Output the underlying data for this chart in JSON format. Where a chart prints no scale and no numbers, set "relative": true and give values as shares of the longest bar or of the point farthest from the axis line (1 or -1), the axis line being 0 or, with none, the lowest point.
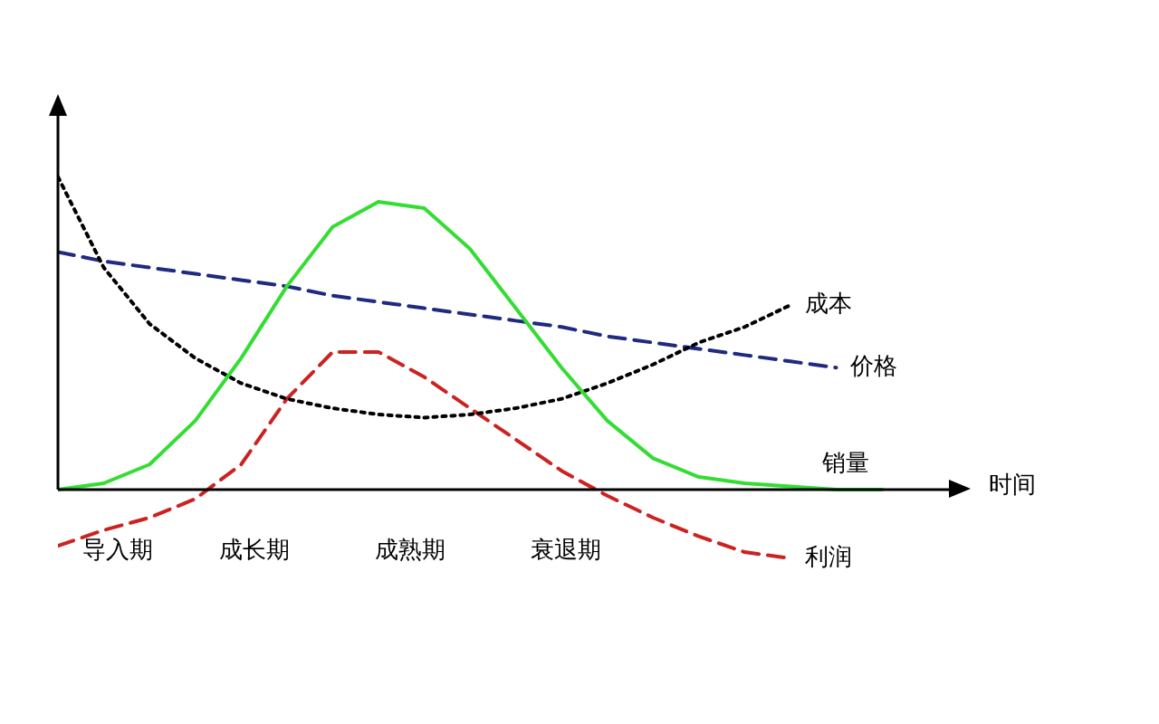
{
  "chart_data": {
    "type": "line",
    "xlabel": "时间",
    "relative": true,
    "legend": false,
    "marker": "none",
    "categories": [
      null,
      null,
      null,
      null,
      null,
      null,
      null,
      null,
      null,
      null,
      null,
      null,
      null,
      null,
      null,
      null,
      null,
      null,
      null
    ],
    "series": [
      {
        "name": "销量",
        "color": "#33dd33",
        "line_style": "solid",
        "values": [
          0,
          0.02,
          0.08,
          0.22,
          0.42,
          0.65,
          0.84,
          0.92,
          0.9,
          0.77,
          0.58,
          0.39,
          0.22,
          0.1,
          0.04,
          0.02,
          0.01,
          0,
          0
        ]
      },
      {
        "name": "成本",
        "color": "#000000",
        "line_style": "dotted",
        "values": [
          1,
          0.71,
          0.53,
          0.42,
          0.34,
          0.29,
          0.26,
          0.24,
          0.23,
          0.24,
          0.26,
          0.29,
          0.34,
          0.4,
          0.47,
          0.52,
          0.59,
          null,
          null
        ]
      },
      {
        "name": "价格",
        "color": "#1f2a80",
        "line_style": "dashed",
        "values": [
          0.76,
          0.73,
          0.71,
          0.69,
          0.67,
          0.65,
          0.62,
          0.6,
          0.58,
          0.56,
          0.54,
          0.52,
          0.49,
          0.47,
          0.45,
          0.43,
          0.41,
          0.39,
          null
        ]
      },
      {
        "name": "利润",
        "color": "#cc2222",
        "line_style": "dashed",
        "values": [
          -0.18,
          -0.13,
          -0.09,
          -0.03,
          0.08,
          0.29,
          0.44,
          0.44,
          0.36,
          0.26,
          0.16,
          0.06,
          -0.02,
          -0.09,
          -0.15,
          -0.2,
          -0.22,
          null,
          null
        ]
      }
    ],
    "annotations": [
      "导入期",
      "成长期",
      "成熟期",
      "衰退期"
    ]
  }
}
